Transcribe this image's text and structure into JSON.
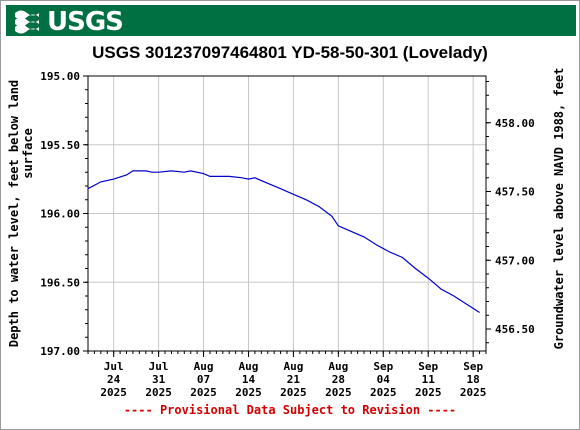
{
  "header": {
    "logo_text": "USGS",
    "brand_color": "#006f41"
  },
  "chart_data": {
    "type": "line",
    "title": "USGS 301237097464801 YD-58-50-301 (Lovelady)",
    "ylabel_left": "Depth to water level, feet below land surface",
    "ylabel_right": "Groundwater level above NAVD 1988, feet",
    "ylim_left": [
      195.0,
      197.0
    ],
    "y_inverted": true,
    "left_ticks": [
      "195.00",
      "195.50",
      "196.00",
      "196.50",
      "197.00"
    ],
    "ylim_right": [
      458.34,
      456.34
    ],
    "right_ticks": [
      "458.00",
      "457.50",
      "457.00",
      "456.50"
    ],
    "x_range": [
      "2025-07-20",
      "2025-09-20"
    ],
    "x_ticks": [
      {
        "month": "Jul",
        "day": "24",
        "year": "2025",
        "date": "2025-07-24"
      },
      {
        "month": "Jul",
        "day": "31",
        "year": "2025",
        "date": "2025-07-31"
      },
      {
        "month": "Aug",
        "day": "07",
        "year": "2025",
        "date": "2025-08-07"
      },
      {
        "month": "Aug",
        "day": "14",
        "year": "2025",
        "date": "2025-08-14"
      },
      {
        "month": "Aug",
        "day": "21",
        "year": "2025",
        "date": "2025-08-21"
      },
      {
        "month": "Aug",
        "day": "28",
        "year": "2025",
        "date": "2025-08-28"
      },
      {
        "month": "Sep",
        "day": "04",
        "year": "2025",
        "date": "2025-09-04"
      },
      {
        "month": "Sep",
        "day": "11",
        "year": "2025",
        "date": "2025-09-11"
      },
      {
        "month": "Sep",
        "day": "18",
        "year": "2025",
        "date": "2025-09-18"
      }
    ],
    "grid": true,
    "series": [
      {
        "color": "#0000cc",
        "points": [
          {
            "x": "2025-07-20",
            "y": 195.82
          },
          {
            "x": "2025-07-22",
            "y": 195.77
          },
          {
            "x": "2025-07-24",
            "y": 195.75
          },
          {
            "x": "2025-07-26",
            "y": 195.72
          },
          {
            "x": "2025-07-27",
            "y": 195.69
          },
          {
            "x": "2025-07-29",
            "y": 195.69
          },
          {
            "x": "2025-07-30",
            "y": 195.7
          },
          {
            "x": "2025-07-31",
            "y": 195.7
          },
          {
            "x": "2025-08-02",
            "y": 195.69
          },
          {
            "x": "2025-08-04",
            "y": 195.7
          },
          {
            "x": "2025-08-05",
            "y": 195.69
          },
          {
            "x": "2025-08-07",
            "y": 195.71
          },
          {
            "x": "2025-08-08",
            "y": 195.73
          },
          {
            "x": "2025-08-11",
            "y": 195.73
          },
          {
            "x": "2025-08-13",
            "y": 195.74
          },
          {
            "x": "2025-08-14",
            "y": 195.75
          },
          {
            "x": "2025-08-15",
            "y": 195.74
          },
          {
            "x": "2025-08-17",
            "y": 195.78
          },
          {
            "x": "2025-08-19",
            "y": 195.82
          },
          {
            "x": "2025-08-21",
            "y": 195.86
          },
          {
            "x": "2025-08-23",
            "y": 195.9
          },
          {
            "x": "2025-08-25",
            "y": 195.95
          },
          {
            "x": "2025-08-27",
            "y": 196.02
          },
          {
            "x": "2025-08-28",
            "y": 196.09
          },
          {
            "x": "2025-08-30",
            "y": 196.13
          },
          {
            "x": "2025-09-01",
            "y": 196.17
          },
          {
            "x": "2025-09-03",
            "y": 196.23
          },
          {
            "x": "2025-09-05",
            "y": 196.28
          },
          {
            "x": "2025-09-07",
            "y": 196.32
          },
          {
            "x": "2025-09-09",
            "y": 196.4
          },
          {
            "x": "2025-09-11",
            "y": 196.47
          },
          {
            "x": "2025-09-13",
            "y": 196.55
          },
          {
            "x": "2025-09-15",
            "y": 196.6
          },
          {
            "x": "2025-09-17",
            "y": 196.66
          },
          {
            "x": "2025-09-18",
            "y": 196.69
          },
          {
            "x": "2025-09-19",
            "y": 196.72
          }
        ]
      }
    ]
  },
  "footer": {
    "provisional_text": "---- Provisional Data Subject to Revision ----",
    "provisional_color": "#d40000"
  }
}
